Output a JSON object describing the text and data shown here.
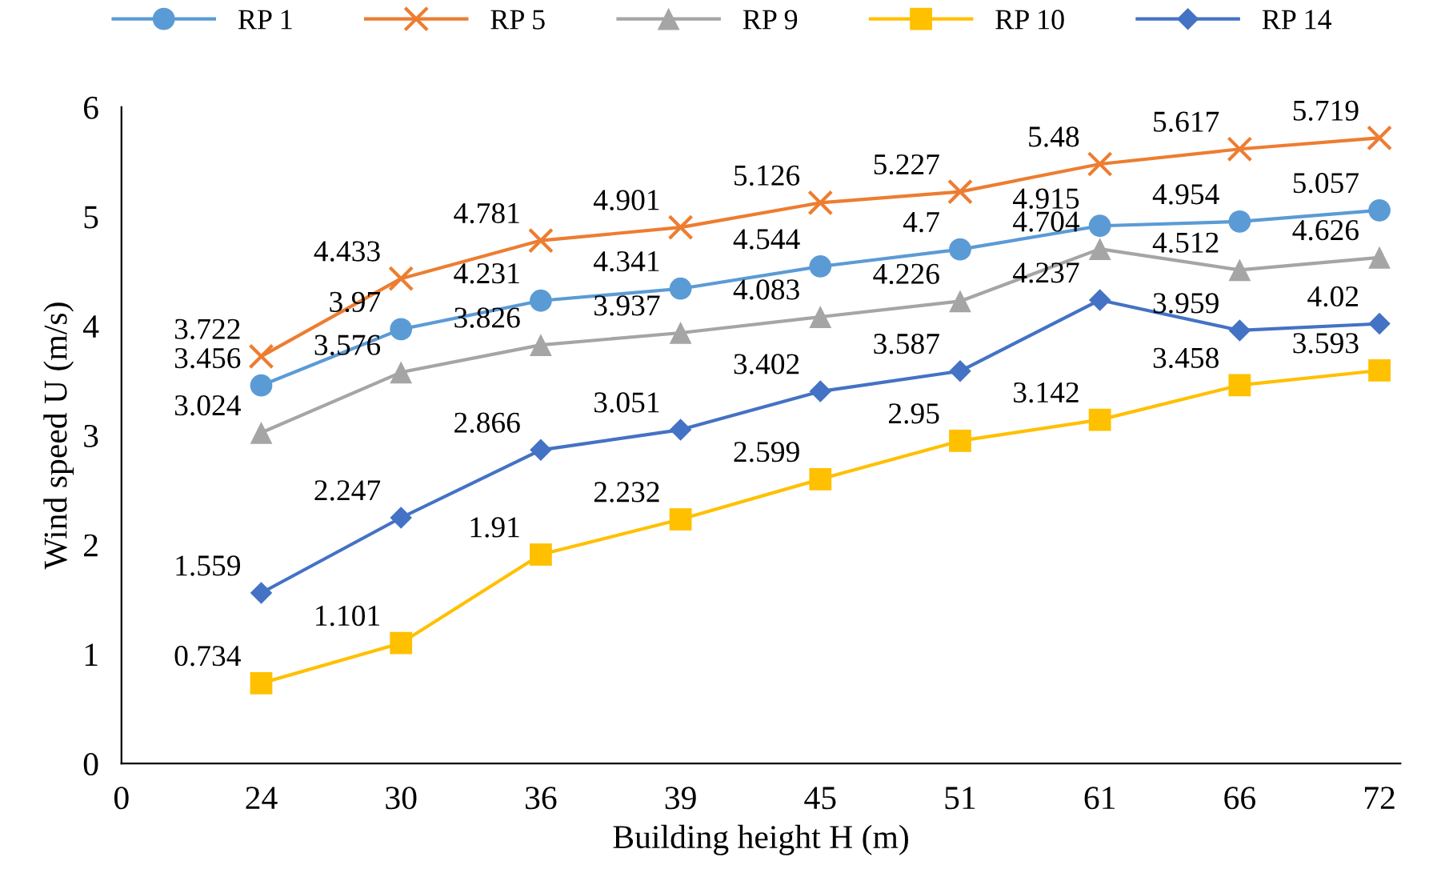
{
  "chart_data": {
    "type": "line",
    "xlabel": "Building height H (m)",
    "ylabel": "Wind speed U (m/s)",
    "categories": [
      "0",
      "24",
      "30",
      "36",
      "39",
      "45",
      "51",
      "61",
      "66",
      "72"
    ],
    "ylim": [
      0,
      6
    ],
    "yticks": [
      0,
      1,
      2,
      3,
      4,
      5,
      6
    ],
    "grid": false,
    "legend": "top",
    "data_labels": true,
    "series": [
      {
        "name": "RP 1",
        "color": "#5b9bd5",
        "marker": "circle",
        "values": [
          null,
          3.456,
          3.97,
          4.231,
          4.341,
          4.544,
          4.7,
          4.915,
          4.954,
          5.057
        ]
      },
      {
        "name": "RP 5",
        "color": "#ed7d31",
        "marker": "cross",
        "values": [
          null,
          3.722,
          4.433,
          4.781,
          4.901,
          5.126,
          5.227,
          5.48,
          5.617,
          5.719
        ]
      },
      {
        "name": "RP 9",
        "color": "#a5a5a5",
        "marker": "triangle",
        "values": [
          null,
          3.024,
          3.576,
          3.826,
          3.937,
          4.083,
          4.226,
          4.704,
          4.512,
          4.626
        ]
      },
      {
        "name": "RP 10",
        "color": "#ffc000",
        "marker": "square",
        "values": [
          null,
          0.734,
          1.101,
          1.91,
          2.232,
          2.599,
          2.95,
          3.142,
          3.458,
          3.593
        ]
      },
      {
        "name": "RP 14",
        "color": "#4472c4",
        "marker": "diamond",
        "values": [
          null,
          1.559,
          2.247,
          2.866,
          3.051,
          3.402,
          3.587,
          4.237,
          3.959,
          4.02
        ]
      }
    ]
  }
}
